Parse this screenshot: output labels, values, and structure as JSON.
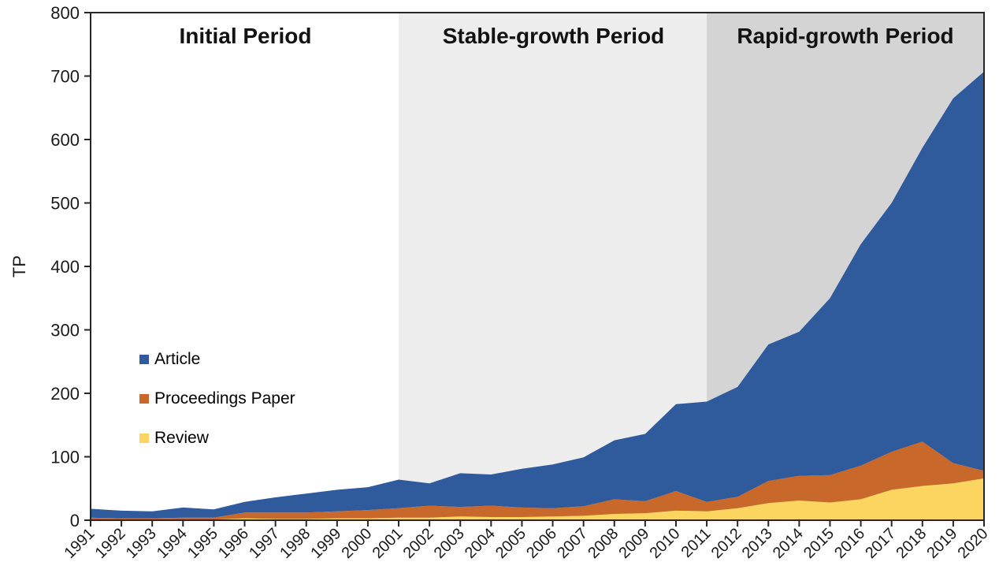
{
  "chart_data": {
    "type": "area",
    "stacked": true,
    "title": "",
    "xlabel": "",
    "ylabel": "TP",
    "ylim": [
      0,
      800
    ],
    "yticks": [
      0,
      100,
      200,
      300,
      400,
      500,
      600,
      700,
      800
    ],
    "grid": false,
    "legend_position": "inside-left",
    "categories": [
      "1991",
      "1992",
      "1993",
      "1994",
      "1995",
      "1996",
      "1997",
      "1998",
      "1999",
      "2000",
      "2001",
      "2002",
      "2003",
      "2004",
      "2005",
      "2006",
      "2007",
      "2008",
      "2009",
      "2010",
      "2011",
      "2012",
      "2013",
      "2014",
      "2015",
      "2016",
      "2017",
      "2018",
      "2019",
      "2020"
    ],
    "series": [
      {
        "name": "Review",
        "color": "#FBD560",
        "values": [
          1,
          1,
          1,
          1,
          1,
          3,
          2,
          2,
          3,
          3,
          4,
          4,
          6,
          5,
          5,
          6,
          7,
          10,
          11,
          15,
          14,
          19,
          27,
          31,
          28,
          33,
          48,
          54,
          58,
          66
        ]
      },
      {
        "name": "Proceedings Paper",
        "color": "#C8692B",
        "values": [
          3,
          2,
          2,
          3,
          3,
          9,
          10,
          10,
          11,
          13,
          15,
          19,
          15,
          18,
          15,
          13,
          15,
          23,
          19,
          31,
          15,
          18,
          35,
          39,
          43,
          53,
          60,
          70,
          32,
          12
        ]
      },
      {
        "name": "Article",
        "color": "#2F5A9C",
        "values": [
          14,
          12,
          11,
          16,
          13,
          17,
          24,
          30,
          34,
          36,
          45,
          35,
          53,
          49,
          61,
          69,
          77,
          93,
          106,
          137,
          158,
          173,
          215,
          227,
          279,
          349,
          392,
          463,
          575,
          629
        ]
      }
    ],
    "legend": {
      "items": [
        {
          "label": "Article",
          "color": "#2F5A9C"
        },
        {
          "label": "Proceedings Paper",
          "color": "#C8692B"
        },
        {
          "label": "Review",
          "color": "#FBD560"
        }
      ]
    },
    "periods": [
      {
        "label": "Initial Period",
        "start_year": "1991",
        "end_year": "2001",
        "color": "#FFFFFF"
      },
      {
        "label": "Stable-growth Period",
        "start_year": "2001",
        "end_year": "2011",
        "color": "#EDEDED"
      },
      {
        "label": "Rapid-growth Period",
        "start_year": "2011",
        "end_year": "2020",
        "color": "#D4D4D4"
      }
    ],
    "axis_color": "#262626",
    "text_color": "#1A1A1A"
  }
}
